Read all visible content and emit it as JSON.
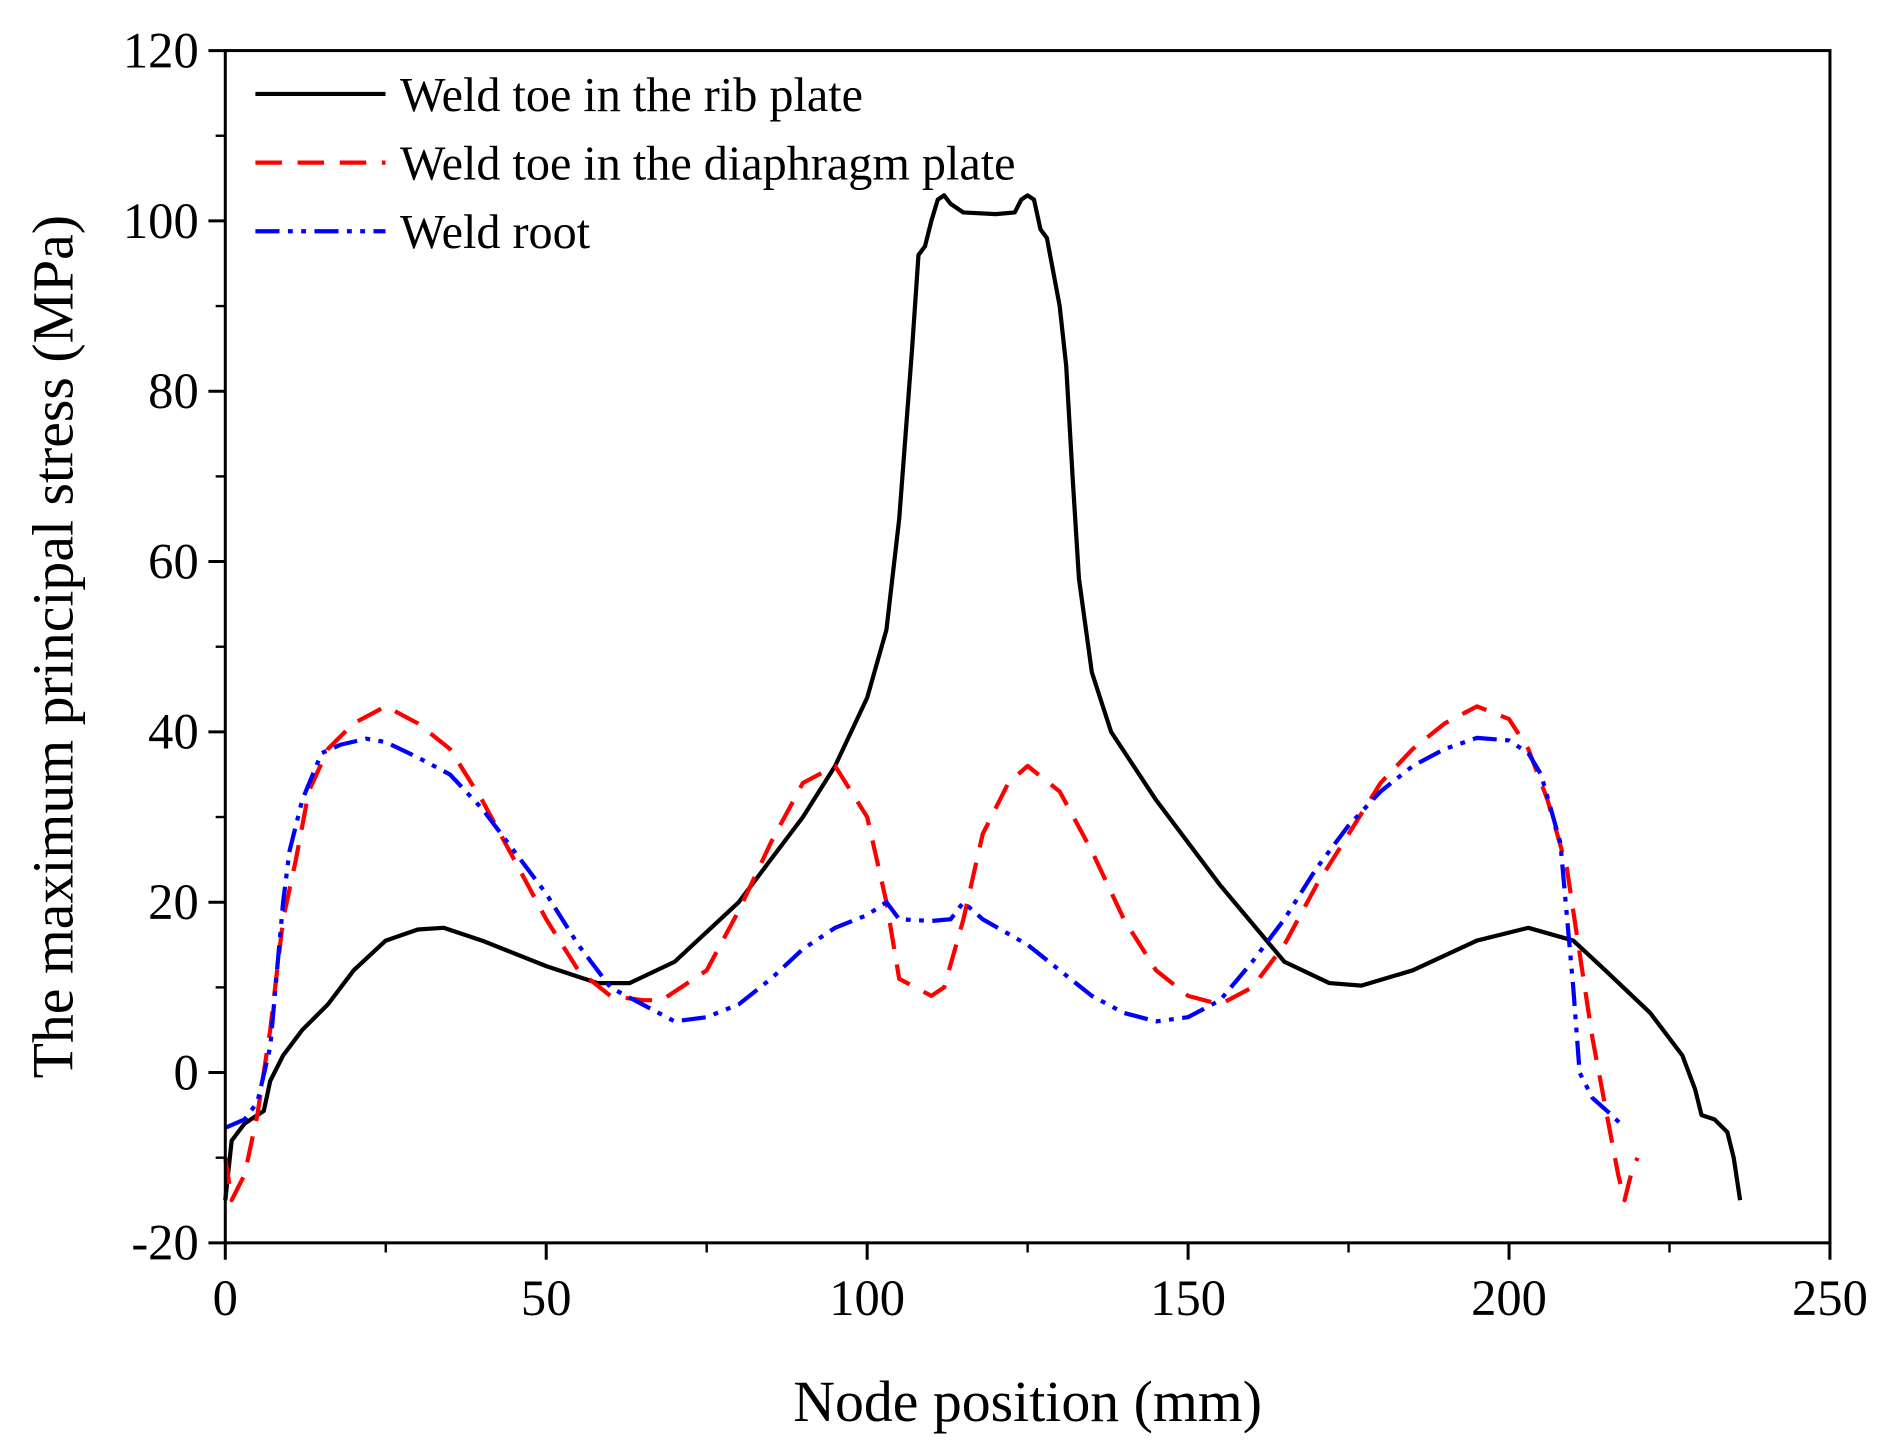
{
  "chart_data": {
    "type": "line",
    "title": "",
    "xlabel": "Node position (mm)",
    "ylabel": "The  maximum principal stress (MPa)",
    "xlim": [
      0,
      250
    ],
    "ylim": [
      -20,
      120
    ],
    "xticks": [
      0,
      50,
      100,
      150,
      200,
      250
    ],
    "yticks": [
      -20,
      0,
      20,
      40,
      60,
      80,
      100,
      120
    ],
    "grid": false,
    "legend_position": "top-left",
    "series": [
      {
        "name": "Weld toe in the rib plate",
        "color": "#000000",
        "style": "solid",
        "points": [
          [
            0,
            -15
          ],
          [
            1,
            -8
          ],
          [
            3,
            -6
          ],
          [
            5,
            -5
          ],
          [
            6,
            -4.5
          ],
          [
            7,
            -1
          ],
          [
            9,
            2
          ],
          [
            12,
            5
          ],
          [
            16,
            8
          ],
          [
            20,
            12
          ],
          [
            25,
            15.5
          ],
          [
            30,
            16.8
          ],
          [
            34,
            17
          ],
          [
            40,
            15.5
          ],
          [
            50,
            12.5
          ],
          [
            58,
            10.5
          ],
          [
            63,
            10.5
          ],
          [
            70,
            13
          ],
          [
            80,
            20
          ],
          [
            90,
            30
          ],
          [
            95,
            36
          ],
          [
            100,
            44
          ],
          [
            103,
            52
          ],
          [
            105,
            65
          ],
          [
            107,
            85
          ],
          [
            108,
            96
          ],
          [
            109,
            97
          ],
          [
            110,
            100
          ],
          [
            111,
            102.5
          ],
          [
            112,
            103
          ],
          [
            113,
            102
          ],
          [
            115,
            101
          ],
          [
            120,
            100.8
          ],
          [
            123,
            101
          ],
          [
            124,
            102.5
          ],
          [
            125,
            103
          ],
          [
            126,
            102.5
          ],
          [
            127,
            99
          ],
          [
            128,
            98
          ],
          [
            130,
            90
          ],
          [
            131,
            83
          ],
          [
            132,
            70
          ],
          [
            133,
            58
          ],
          [
            135,
            47
          ],
          [
            138,
            40
          ],
          [
            145,
            32
          ],
          [
            155,
            22
          ],
          [
            165,
            13
          ],
          [
            172,
            10.5
          ],
          [
            177,
            10.2
          ],
          [
            185,
            12
          ],
          [
            195,
            15.5
          ],
          [
            203,
            17
          ],
          [
            210,
            15.5
          ],
          [
            215,
            12
          ],
          [
            222,
            7
          ],
          [
            227,
            2
          ],
          [
            229,
            -2
          ],
          [
            230,
            -5
          ],
          [
            232,
            -5.5
          ],
          [
            234,
            -7
          ],
          [
            235,
            -10
          ],
          [
            236,
            -15
          ]
        ]
      },
      {
        "name": "Weld toe in the diaphragm plate",
        "color": "#ff0000",
        "style": "dashed",
        "points": [
          [
            0,
            -10
          ],
          [
            1,
            -15
          ],
          [
            3,
            -12
          ],
          [
            5,
            -5
          ],
          [
            7,
            5
          ],
          [
            9,
            18
          ],
          [
            11,
            25
          ],
          [
            13,
            33
          ],
          [
            16,
            38
          ],
          [
            20,
            41
          ],
          [
            25,
            43
          ],
          [
            30,
            41
          ],
          [
            35,
            38
          ],
          [
            40,
            32
          ],
          [
            45,
            25
          ],
          [
            50,
            18
          ],
          [
            55,
            12
          ],
          [
            60,
            9
          ],
          [
            65,
            8.5
          ],
          [
            68,
            8.5
          ],
          [
            75,
            12
          ],
          [
            80,
            19
          ],
          [
            85,
            27
          ],
          [
            90,
            34
          ],
          [
            95,
            36
          ],
          [
            100,
            30
          ],
          [
            103,
            20
          ],
          [
            105,
            11
          ],
          [
            110,
            9
          ],
          [
            112,
            10
          ],
          [
            115,
            18
          ],
          [
            118,
            28
          ],
          [
            122,
            34
          ],
          [
            125,
            36
          ],
          [
            130,
            33
          ],
          [
            135,
            26
          ],
          [
            140,
            18
          ],
          [
            145,
            12
          ],
          [
            150,
            9
          ],
          [
            155,
            8
          ],
          [
            160,
            10
          ],
          [
            165,
            15
          ],
          [
            170,
            22
          ],
          [
            175,
            28
          ],
          [
            180,
            34
          ],
          [
            185,
            38
          ],
          [
            190,
            41
          ],
          [
            195,
            43
          ],
          [
            200,
            41.5
          ],
          [
            203,
            38
          ],
          [
            206,
            32
          ],
          [
            209,
            24
          ],
          [
            211,
            14
          ],
          [
            213,
            4
          ],
          [
            215,
            -4
          ],
          [
            217,
            -12
          ],
          [
            218,
            -15
          ],
          [
            219,
            -12
          ],
          [
            220,
            -10
          ]
        ]
      },
      {
        "name": "Weld root",
        "color": "#0000ff",
        "style": "dash-dot-dot",
        "points": [
          [
            0,
            -6.5
          ],
          [
            3,
            -5.5
          ],
          [
            5,
            -3.5
          ],
          [
            7,
            3
          ],
          [
            9,
            20
          ],
          [
            10,
            26
          ],
          [
            12,
            32
          ],
          [
            15,
            37.5
          ],
          [
            18,
            38.5
          ],
          [
            22,
            39.2
          ],
          [
            25,
            38.8
          ],
          [
            30,
            37
          ],
          [
            35,
            35
          ],
          [
            40,
            31
          ],
          [
            45,
            26
          ],
          [
            50,
            21
          ],
          [
            55,
            15
          ],
          [
            60,
            10
          ],
          [
            65,
            8
          ],
          [
            70,
            6
          ],
          [
            75,
            6.5
          ],
          [
            80,
            8
          ],
          [
            85,
            11
          ],
          [
            90,
            14.5
          ],
          [
            95,
            17
          ],
          [
            100,
            18.5
          ],
          [
            103,
            20
          ],
          [
            105,
            18
          ],
          [
            110,
            17.8
          ],
          [
            113,
            18
          ],
          [
            115,
            20
          ],
          [
            118,
            18
          ],
          [
            125,
            15
          ],
          [
            130,
            12
          ],
          [
            135,
            9
          ],
          [
            140,
            7
          ],
          [
            145,
            6
          ],
          [
            150,
            6.5
          ],
          [
            155,
            8.5
          ],
          [
            160,
            13
          ],
          [
            165,
            18
          ],
          [
            170,
            24
          ],
          [
            175,
            29
          ],
          [
            180,
            33
          ],
          [
            185,
            36
          ],
          [
            190,
            38
          ],
          [
            195,
            39.3
          ],
          [
            200,
            39
          ],
          [
            203,
            37.5
          ],
          [
            205,
            35
          ],
          [
            208,
            27
          ],
          [
            210,
            10
          ],
          [
            211,
            0
          ],
          [
            213,
            -3
          ],
          [
            216,
            -5
          ],
          [
            218,
            -6.5
          ]
        ]
      }
    ]
  }
}
